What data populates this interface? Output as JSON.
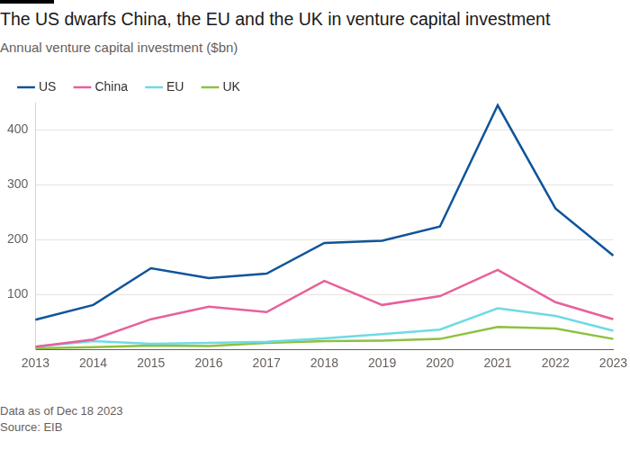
{
  "chart_data": {
    "type": "line",
    "title": "The US dwarfs China, the EU and the UK in venture capital investment",
    "subtitle": "Annual venture capital investment ($bn)",
    "categories": [
      "2013",
      "2014",
      "2015",
      "2016",
      "2017",
      "2018",
      "2019",
      "2020",
      "2021",
      "2022",
      "2023"
    ],
    "series": [
      {
        "name": "US",
        "color": "#0f5499",
        "values": [
          54,
          81,
          148,
          130,
          138,
          194,
          198,
          224,
          445,
          257,
          171
        ]
      },
      {
        "name": "China",
        "color": "#e8609a",
        "values": [
          5,
          18,
          55,
          78,
          68,
          125,
          81,
          97,
          145,
          86,
          55
        ]
      },
      {
        "name": "EU",
        "color": "#6fdae6",
        "values": [
          5,
          15,
          10,
          12,
          14,
          20,
          28,
          36,
          75,
          61,
          34
        ]
      },
      {
        "name": "UK",
        "color": "#8fc03f",
        "values": [
          2,
          4,
          7,
          6,
          12,
          15,
          16,
          19,
          41,
          38,
          19
        ]
      }
    ],
    "ylim": [
      0,
      450
    ],
    "yticks": [
      100,
      200,
      300,
      400
    ],
    "grid": true,
    "legend": "top-left",
    "notes": [
      "Data as of Dec 18 2023",
      "Source: EIB"
    ]
  }
}
